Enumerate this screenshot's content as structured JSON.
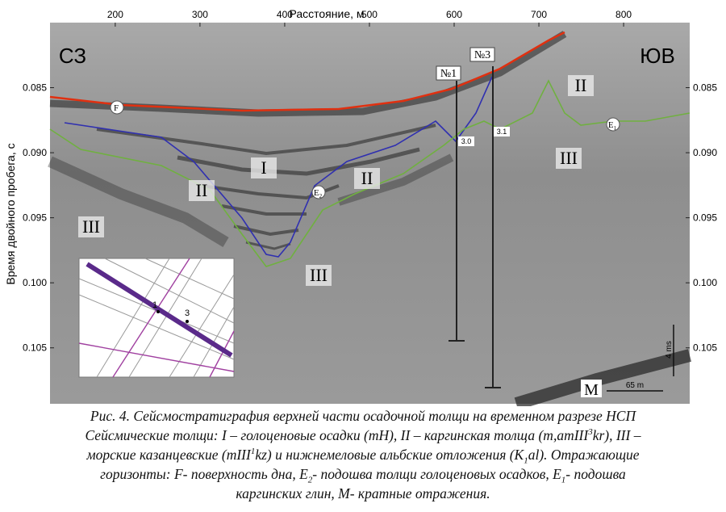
{
  "figure": {
    "x_label": "Расстояние, м",
    "y_label": "Время двойного пробега, с",
    "xlim": [
      123,
      878
    ],
    "xticks": [
      200,
      300,
      400,
      500,
      600,
      700,
      800
    ],
    "ylim": [
      0.08,
      0.1093
    ],
    "yticks": [
      0.085,
      {
        "value": 0.09,
        "label": "0.090"
      },
      0.095,
      {
        "value": 0.1,
        "label": "0.100"
      },
      0.105
    ],
    "sides": [
      "СЗ",
      "ЮВ"
    ],
    "units": [
      "I",
      "II",
      "II",
      "II",
      "III",
      "III",
      "III"
    ],
    "horizons": [
      {
        "text": "F"
      },
      {
        "text": "E",
        "sub": "2"
      },
      {
        "text": "E",
        "sub": "1"
      }
    ],
    "wells": [
      "№1",
      "№3"
    ],
    "depths": [
      "3.0",
      "3.1"
    ],
    "multiple": "M",
    "scale_x": "65 m",
    "scale_y": "4 ms",
    "inset_points": [
      "1",
      "3"
    ]
  },
  "caption": {
    "lines": [
      [
        "Рис. 4. Сейсмостратиграфия верхней части осадочной толщи на временном разрезе НСП"
      ],
      [
        "Сейсмические толщи: I – голоценовые осадки (mH), II – каргинская толща (m,amIII",
        {
          "sup": "3"
        },
        "kr), III –"
      ],
      [
        "морские казанцевские (mIII",
        {
          "sup": "1"
        },
        "kz) и нижнемеловые альбские отложения (K",
        {
          "sub": "1"
        },
        "al). Отражающие"
      ],
      [
        "горизонты: F- поверхность дна, E",
        {
          "sub": "2"
        },
        "- подошва толщи голоценовых осадков, E",
        {
          "sub": "1"
        },
        "- подошва"
      ],
      [
        "каргинских глин, M- кратные отражения."
      ]
    ]
  }
}
